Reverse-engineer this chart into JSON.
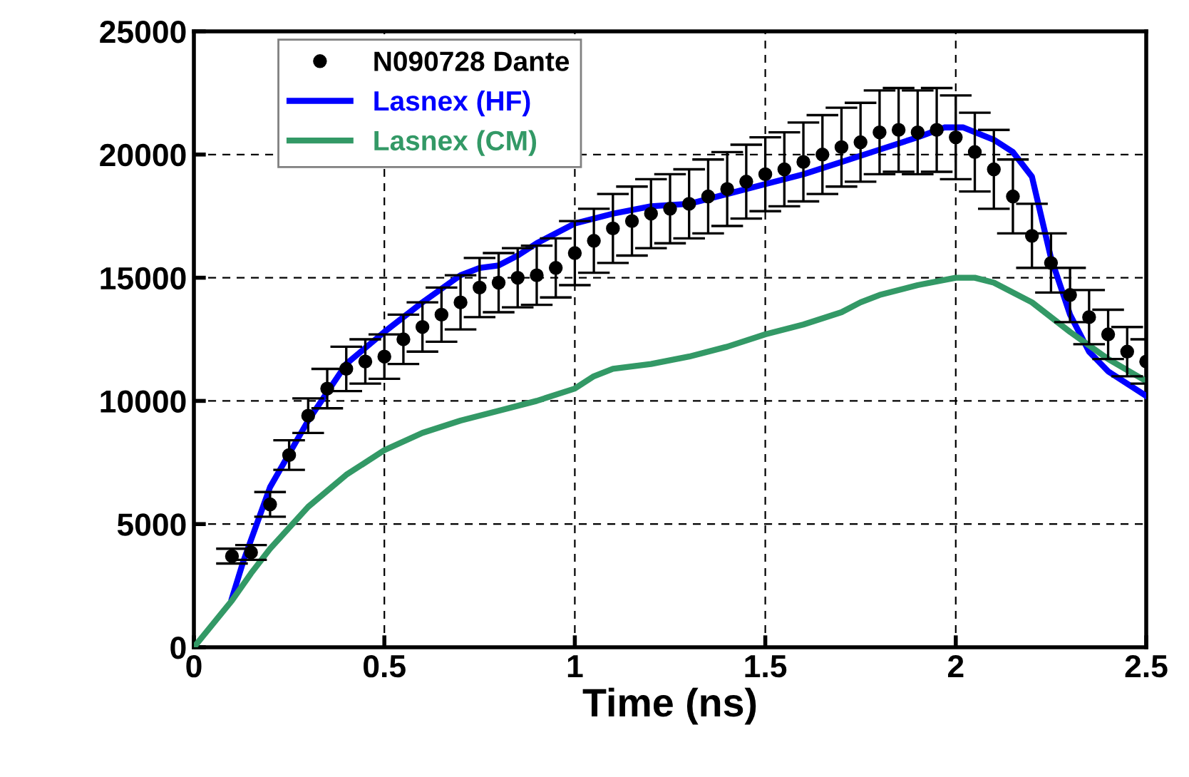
{
  "chart_data": {
    "type": "line",
    "xlabel": "Time (ns)",
    "xlim": [
      0,
      2.5
    ],
    "ylim": [
      0,
      25000
    ],
    "xticks": [
      0,
      0.5,
      1,
      1.5,
      2,
      2.5
    ],
    "yticks": [
      0,
      5000,
      10000,
      15000,
      20000,
      25000
    ],
    "grid": true,
    "legend": "top left",
    "series": [
      {
        "name": "N090728 Dante",
        "type": "scatter",
        "color": "#000000",
        "marker": "circle",
        "x": [
          0.1,
          0.15,
          0.2,
          0.25,
          0.3,
          0.35,
          0.4,
          0.45,
          0.5,
          0.55,
          0.6,
          0.65,
          0.7,
          0.75,
          0.8,
          0.85,
          0.9,
          0.95,
          1.0,
          1.05,
          1.1,
          1.15,
          1.2,
          1.25,
          1.3,
          1.35,
          1.4,
          1.45,
          1.5,
          1.55,
          1.6,
          1.65,
          1.7,
          1.75,
          1.8,
          1.85,
          1.9,
          1.95,
          2.0,
          2.05,
          2.1,
          2.15,
          2.2,
          2.25,
          2.3,
          2.35,
          2.4,
          2.45,
          2.5
        ],
        "values": [
          3700,
          3850,
          5800,
          7800,
          9400,
          10500,
          11300,
          11600,
          11800,
          12500,
          13000,
          13500,
          14000,
          14600,
          14800,
          15000,
          15100,
          15400,
          16000,
          16500,
          17000,
          17300,
          17600,
          17800,
          18000,
          18300,
          18600,
          18900,
          19200,
          19400,
          19700,
          20000,
          20300,
          20500,
          20900,
          21000,
          20900,
          21000,
          20700,
          20100,
          19400,
          18300,
          16700,
          15600,
          14300,
          13400,
          12700,
          12000,
          11600
        ],
        "errors": [
          300,
          300,
          500,
          600,
          700,
          800,
          900,
          900,
          900,
          1000,
          1000,
          1100,
          1100,
          1200,
          1200,
          1200,
          1200,
          1200,
          1300,
          1300,
          1400,
          1400,
          1400,
          1400,
          1400,
          1500,
          1500,
          1500,
          1500,
          1500,
          1600,
          1600,
          1600,
          1600,
          1700,
          1700,
          1700,
          1700,
          1700,
          1600,
          1600,
          1500,
          1300,
          1200,
          1100,
          1100,
          1000,
          1000,
          900
        ]
      },
      {
        "name": "Lasnex (HF)",
        "color": "#0000ff",
        "x": [
          0.1,
          0.13,
          0.2,
          0.3,
          0.4,
          0.5,
          0.6,
          0.7,
          0.75,
          0.8,
          0.85,
          0.9,
          1.0,
          1.1,
          1.2,
          1.3,
          1.4,
          1.5,
          1.6,
          1.7,
          1.8,
          1.9,
          1.97,
          2.02,
          2.1,
          2.15,
          2.2,
          2.25,
          2.3,
          2.35,
          2.4,
          2.5
        ],
        "values": [
          2000,
          3500,
          6500,
          9200,
          11500,
          12800,
          14000,
          15100,
          15400,
          15500,
          15900,
          16400,
          17200,
          17600,
          17900,
          18000,
          18400,
          18800,
          19200,
          19700,
          20200,
          20700,
          21100,
          21100,
          20600,
          20100,
          19100,
          15800,
          13500,
          12000,
          11200,
          10200
        ]
      },
      {
        "name": "Lasnex (CM)",
        "color": "#339966",
        "x": [
          0,
          0.1,
          0.15,
          0.2,
          0.3,
          0.4,
          0.5,
          0.6,
          0.7,
          0.8,
          0.9,
          1.0,
          1.05,
          1.1,
          1.2,
          1.3,
          1.4,
          1.5,
          1.6,
          1.7,
          1.75,
          1.8,
          1.9,
          2.0,
          2.05,
          2.1,
          2.2,
          2.3,
          2.4,
          2.5
        ],
        "values": [
          0,
          1900,
          3000,
          4000,
          5700,
          7000,
          8000,
          8700,
          9200,
          9600,
          10000,
          10500,
          11000,
          11300,
          11500,
          11800,
          12200,
          12700,
          13100,
          13600,
          14000,
          14300,
          14700,
          15000,
          15000,
          14800,
          14000,
          12800,
          11700,
          10800
        ]
      }
    ]
  }
}
